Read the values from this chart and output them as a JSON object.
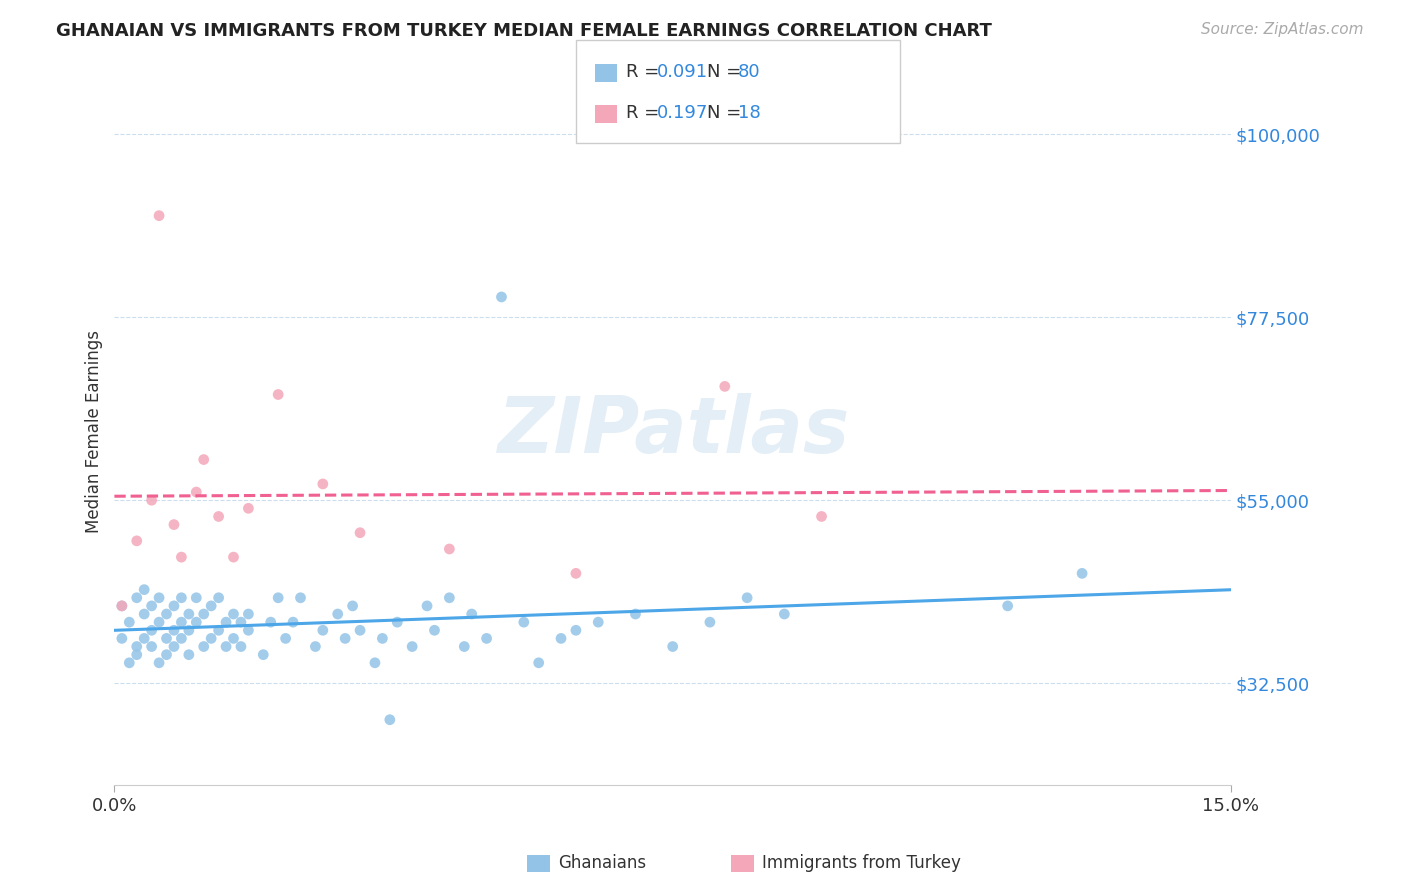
{
  "title": "GHANAIAN VS IMMIGRANTS FROM TURKEY MEDIAN FEMALE EARNINGS CORRELATION CHART",
  "source": "Source: ZipAtlas.com",
  "ylabel": "Median Female Earnings",
  "xlim": [
    0.0,
    0.15
  ],
  "ylim": [
    20000,
    107000
  ],
  "ytick_vals": [
    32500,
    55000,
    77500,
    100000
  ],
  "ytick_labels": [
    "$32,500",
    "$55,000",
    "$77,500",
    "$100,000"
  ],
  "xtick_vals": [
    0.0,
    0.15
  ],
  "xtick_labels": [
    "0.0%",
    "15.0%"
  ],
  "ghanaian_color": "#93c4e8",
  "turkey_color": "#f4a7b9",
  "ghanaian_line_color": "#4da6e8",
  "turkey_line_color": "#f06090",
  "R_ghanaian": "0.091",
  "N_ghanaian": "80",
  "R_turkey": "0.197",
  "N_turkey": "18",
  "legend_label_1": "Ghanaians",
  "legend_label_2": "Immigrants from Turkey",
  "background_color": "#ffffff",
  "ghanaian_x": [
    0.001,
    0.001,
    0.002,
    0.002,
    0.003,
    0.003,
    0.003,
    0.004,
    0.004,
    0.004,
    0.005,
    0.005,
    0.005,
    0.006,
    0.006,
    0.006,
    0.007,
    0.007,
    0.007,
    0.008,
    0.008,
    0.008,
    0.009,
    0.009,
    0.009,
    0.01,
    0.01,
    0.01,
    0.011,
    0.011,
    0.012,
    0.012,
    0.013,
    0.013,
    0.014,
    0.014,
    0.015,
    0.015,
    0.016,
    0.016,
    0.017,
    0.017,
    0.018,
    0.018,
    0.02,
    0.021,
    0.022,
    0.023,
    0.024,
    0.025,
    0.027,
    0.028,
    0.03,
    0.031,
    0.032,
    0.033,
    0.035,
    0.036,
    0.037,
    0.038,
    0.04,
    0.042,
    0.043,
    0.045,
    0.047,
    0.048,
    0.05,
    0.052,
    0.055,
    0.057,
    0.06,
    0.062,
    0.065,
    0.07,
    0.075,
    0.08,
    0.085,
    0.09,
    0.12,
    0.13
  ],
  "ghanaian_y": [
    42000,
    38000,
    35000,
    40000,
    37000,
    43000,
    36000,
    41000,
    44000,
    38000,
    39000,
    42000,
    37000,
    40000,
    43000,
    35000,
    38000,
    41000,
    36000,
    39000,
    42000,
    37000,
    40000,
    43000,
    38000,
    41000,
    36000,
    39000,
    40000,
    43000,
    37000,
    41000,
    38000,
    42000,
    39000,
    43000,
    40000,
    37000,
    41000,
    38000,
    40000,
    37000,
    39000,
    41000,
    36000,
    40000,
    43000,
    38000,
    40000,
    43000,
    37000,
    39000,
    41000,
    38000,
    42000,
    39000,
    35000,
    38000,
    28000,
    40000,
    37000,
    42000,
    39000,
    43000,
    37000,
    41000,
    38000,
    80000,
    40000,
    35000,
    38000,
    39000,
    40000,
    41000,
    37000,
    40000,
    43000,
    41000,
    42000,
    46000
  ],
  "turkey_x": [
    0.001,
    0.003,
    0.005,
    0.006,
    0.008,
    0.009,
    0.011,
    0.012,
    0.014,
    0.016,
    0.018,
    0.022,
    0.028,
    0.033,
    0.045,
    0.062,
    0.082,
    0.095
  ],
  "turkey_y": [
    42000,
    50000,
    55000,
    90000,
    52000,
    48000,
    56000,
    60000,
    53000,
    48000,
    54000,
    68000,
    57000,
    51000,
    49000,
    46000,
    69000,
    53000
  ]
}
